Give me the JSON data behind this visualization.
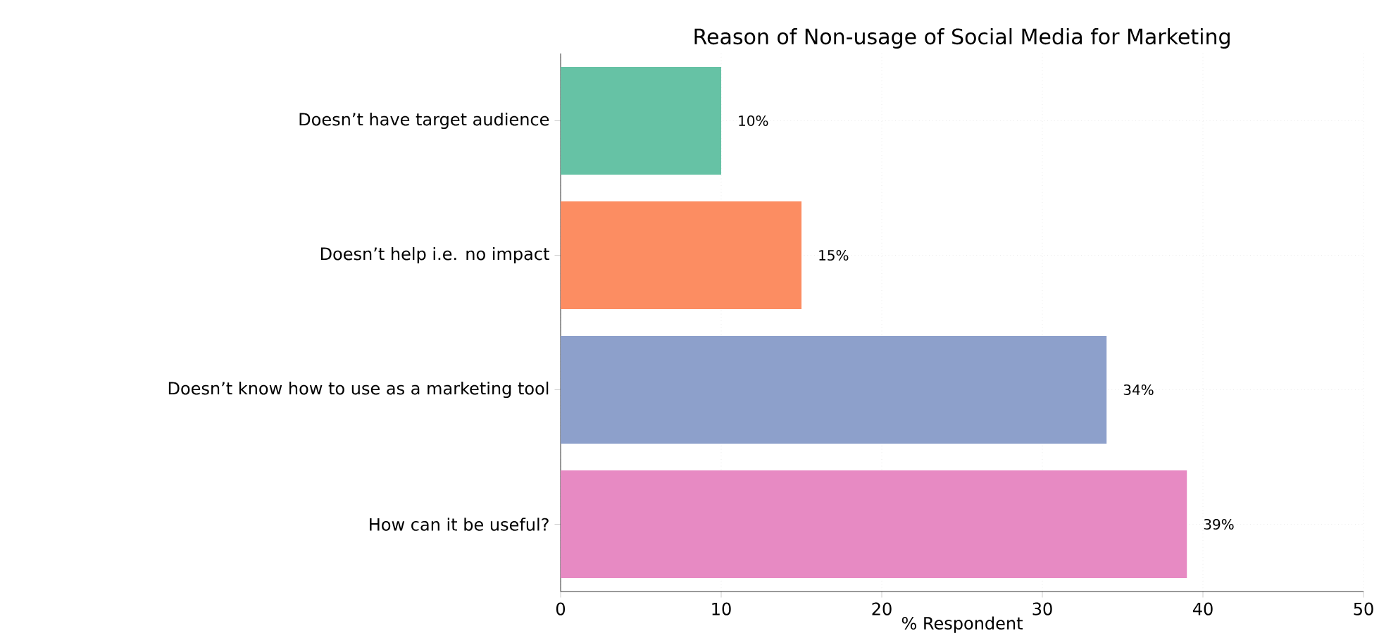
{
  "chart_data": {
    "type": "bar",
    "orientation": "horizontal",
    "title": "Reason of Non-usage of Social Media for Marketing",
    "xlabel": "% Respondent",
    "categories": [
      "Doesn’t have target audience",
      "Doesn’t help i.e. no impact",
      "Doesn’t know how to use as a marketing tool",
      "How can it be useful?"
    ],
    "values": [
      10,
      15,
      34,
      39
    ],
    "colors": [
      "#66c2a5",
      "#fc8d62",
      "#8da0cb",
      "#e78ac3"
    ],
    "value_labels": [
      "10%",
      "15%",
      "34%",
      "39%"
    ],
    "xlim": [
      0,
      50
    ],
    "xticks": [
      0,
      10,
      20,
      30,
      40,
      50
    ],
    "grid": true
  }
}
